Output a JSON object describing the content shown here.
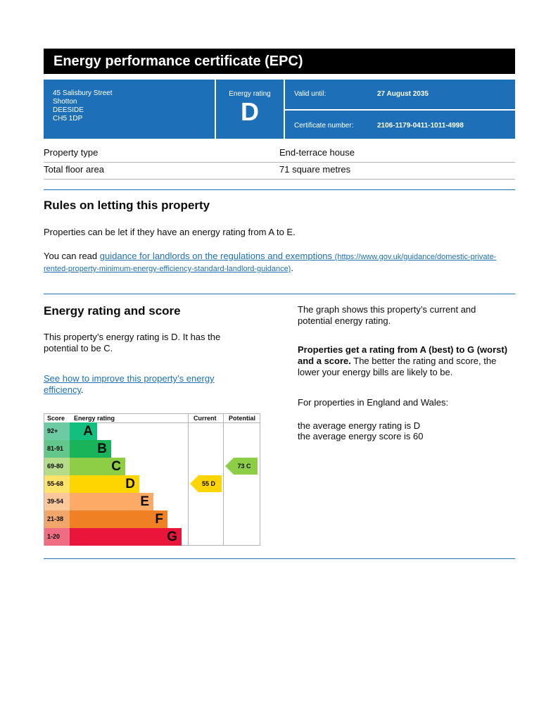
{
  "title": "Energy performance certificate (EPC)",
  "address": [
    "45 Salisbury Street",
    "Shotton",
    "DEESIDE",
    "CH5 1DP"
  ],
  "rating_label": "Energy rating",
  "rating": "D",
  "valid_label": "Valid until:",
  "valid_value": "27 August 2035",
  "cert_label": "Certificate number:",
  "cert_value": "2106-1179-0411-1011-4998",
  "property": [
    {
      "label": "Property type",
      "value": "End-terrace house"
    },
    {
      "label": "Total floor area",
      "value": "71 square metres"
    }
  ],
  "rules": {
    "heading": "Rules on letting this property",
    "p1": "Properties can be let if they have an energy rating from A to E.",
    "p2_pre": "You can read ",
    "link": "guidance for landlords on the regulations and exemptions",
    "url": "(https://www.gov.uk/guidance/domestic-private-rented-property-minimum-energy-efficiency-standard-landlord-guidance)",
    "p2_post": "."
  },
  "score": {
    "heading": "Energy rating and score",
    "p1": "This property’s energy rating is D. It has the potential to be C.",
    "link": "See how to improve this property’s energy efficiency",
    "link_post": ".",
    "r1": "The graph shows this property’s current and potential energy rating.",
    "r2_bold": "Properties get a rating from A (best) to G (worst) and a score.",
    "r2": " The better the rating and score, the lower your energy bills are likely to be.",
    "r3": "For properties in England and Wales:",
    "r4": "the average energy rating is D",
    "r5": "the average energy score is 60"
  },
  "chart": {
    "headers": {
      "score": "Score",
      "rating": "Energy rating",
      "current": "Current",
      "potential": "Potential"
    },
    "bands": [
      {
        "score": "92+",
        "letter": "A",
        "color": "#12bf7f",
        "tint": "#6ccba3"
      },
      {
        "score": "81-91",
        "letter": "B",
        "color": "#19b459",
        "tint": "#63c68a"
      },
      {
        "score": "69-80",
        "letter": "C",
        "color": "#8dce46",
        "tint": "#b5dc8a"
      },
      {
        "score": "55-68",
        "letter": "D",
        "color": "#ffd500",
        "tint": "#ffe36a"
      },
      {
        "score": "39-54",
        "letter": "E",
        "color": "#fcaa65",
        "tint": "#fcc79a"
      },
      {
        "score": "21-38",
        "letter": "F",
        "color": "#ef8023",
        "tint": "#f3a66a"
      },
      {
        "score": "1-20",
        "letter": "G",
        "color": "#e9153b",
        "tint": "#ef6d83"
      }
    ],
    "current": {
      "text": "55  D",
      "band": 3,
      "color": "#ffd500"
    },
    "potential": {
      "text": "73  C",
      "band": 2,
      "color": "#8dce46"
    }
  }
}
